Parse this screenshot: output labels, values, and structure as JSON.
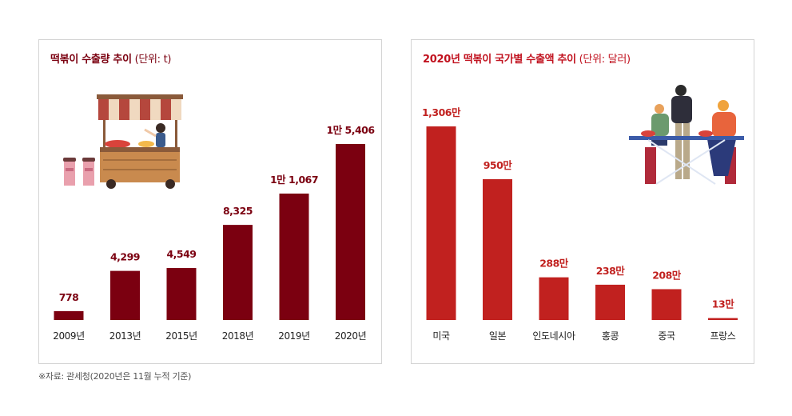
{
  "source_note": "※자료: 관세청(2020년은 11월 누적 기준)",
  "colors": {
    "left_bar": "#7b0010",
    "right_bar": "#c1211f",
    "left_label": "#7b0010",
    "right_label": "#c1211f"
  },
  "chart_data": [
    {
      "type": "bar",
      "title": "떡볶이 수출량 추이",
      "unit": "(단위: t)",
      "categories": [
        "2009년",
        "2013년",
        "2015년",
        "2018년",
        "2019년",
        "2020년"
      ],
      "values": [
        778,
        4299,
        4549,
        8325,
        11067,
        15406
      ],
      "value_labels": [
        "778",
        "4,299",
        "4,549",
        "8,325",
        "1만 1,067",
        "1만 5,406"
      ],
      "ylim": [
        0,
        15406
      ],
      "grid": false,
      "illustration": "street-food-cart"
    },
    {
      "type": "bar",
      "title": "2020년 떡볶이 국가별 수출액 추이",
      "unit": "(단위: 달러)",
      "categories": [
        "미국",
        "일본",
        "인도네시아",
        "홍콩",
        "중국",
        "프랑스"
      ],
      "values": [
        13060000,
        9500000,
        2880000,
        2380000,
        2080000,
        130000
      ],
      "value_labels": [
        "1,306만",
        "950만",
        "288만",
        "238만",
        "208만",
        "13만"
      ],
      "ylim": [
        0,
        13060000
      ],
      "grid": false,
      "illustration": "people-eating-at-table"
    }
  ]
}
